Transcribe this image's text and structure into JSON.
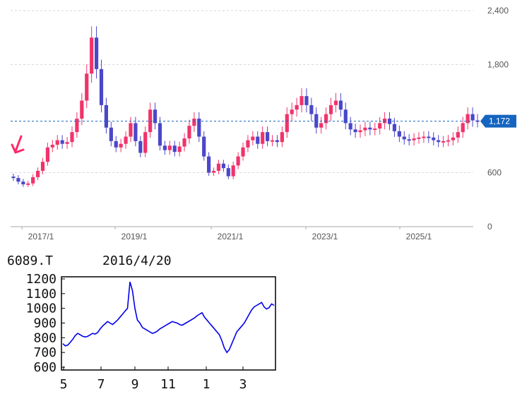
{
  "colors": {
    "up": "#f0336b",
    "down": "#4b47c9",
    "grid": "#d7d7d7",
    "current": "#1565c0",
    "arrow": "#ff2a6a",
    "sub_line": "#0000ee"
  },
  "chart_data": [
    {
      "type": "candlestick",
      "title": "",
      "y_ticks": [
        "2,400",
        "1,800",
        "600",
        "0"
      ],
      "x_ticks": [
        "2017/1",
        "2019/1",
        "2021/1",
        "2023/1",
        "2025/1"
      ],
      "ylim": [
        0,
        2400
      ],
      "grid": true,
      "current_value_label": "1,172",
      "current_value": 1172,
      "annotation": "arrow pointing at first candle",
      "close_series": [
        {
          "date": "2016/5",
          "close": 540
        },
        {
          "date": "2016/6",
          "close": 500
        },
        {
          "date": "2016/7",
          "close": 470
        },
        {
          "date": "2016/8",
          "close": 480
        },
        {
          "date": "2016/9",
          "close": 550
        },
        {
          "date": "2016/10",
          "close": 620
        },
        {
          "date": "2016/11",
          "close": 720
        },
        {
          "date": "2016/12",
          "close": 880
        },
        {
          "date": "2017/1",
          "close": 910
        },
        {
          "date": "2017/2",
          "close": 960
        },
        {
          "date": "2017/3",
          "close": 920
        },
        {
          "date": "2017/4",
          "close": 940
        },
        {
          "date": "2017/5",
          "close": 1050
        },
        {
          "date": "2017/6",
          "close": 1200
        },
        {
          "date": "2017/7",
          "close": 1400
        },
        {
          "date": "2017/8",
          "close": 1700
        },
        {
          "date": "2017/9",
          "close": 2100
        },
        {
          "date": "2017/10",
          "close": 1750
        },
        {
          "date": "2017/11",
          "close": 1350
        },
        {
          "date": "2017/12",
          "close": 1100
        },
        {
          "date": "2018/1",
          "close": 950
        },
        {
          "date": "2018/2",
          "close": 880
        },
        {
          "date": "2018/3",
          "close": 920
        },
        {
          "date": "2018/4",
          "close": 1000
        },
        {
          "date": "2018/5",
          "close": 1150
        },
        {
          "date": "2018/6",
          "close": 950
        },
        {
          "date": "2018/7",
          "close": 820
        },
        {
          "date": "2018/8",
          "close": 1050
        },
        {
          "date": "2018/9",
          "close": 1300
        },
        {
          "date": "2018/10",
          "close": 1150
        },
        {
          "date": "2018/11",
          "close": 900
        },
        {
          "date": "2018/12",
          "close": 850
        },
        {
          "date": "2019/1",
          "close": 900
        },
        {
          "date": "2019/2",
          "close": 830
        },
        {
          "date": "2019/3",
          "close": 890
        },
        {
          "date": "2019/4",
          "close": 980
        },
        {
          "date": "2019/5",
          "close": 1120
        },
        {
          "date": "2019/6",
          "close": 1200
        },
        {
          "date": "2019/7",
          "close": 1000
        },
        {
          "date": "2019/8",
          "close": 780
        },
        {
          "date": "2019/9",
          "close": 600
        },
        {
          "date": "2019/10",
          "close": 620
        },
        {
          "date": "2019/11",
          "close": 700
        },
        {
          "date": "2019/12",
          "close": 650
        },
        {
          "date": "2020/1",
          "close": 560
        },
        {
          "date": "2020/2",
          "close": 680
        },
        {
          "date": "2020/3",
          "close": 780
        },
        {
          "date": "2020/4",
          "close": 880
        },
        {
          "date": "2020/5",
          "close": 960
        },
        {
          "date": "2020/6",
          "close": 1000
        },
        {
          "date": "2020/7",
          "close": 920
        },
        {
          "date": "2020/8",
          "close": 1050
        },
        {
          "date": "2020/9",
          "close": 950
        },
        {
          "date": "2020/10",
          "close": 960
        },
        {
          "date": "2020/11",
          "close": 940
        },
        {
          "date": "2020/12",
          "close": 1050
        },
        {
          "date": "2021/1",
          "close": 1250
        },
        {
          "date": "2021/2",
          "close": 1300
        },
        {
          "date": "2021/3",
          "close": 1350
        },
        {
          "date": "2021/4",
          "close": 1450
        },
        {
          "date": "2021/5",
          "close": 1350
        },
        {
          "date": "2021/6",
          "close": 1250
        },
        {
          "date": "2021/7",
          "close": 1100
        },
        {
          "date": "2021/8",
          "close": 1150
        },
        {
          "date": "2021/9",
          "close": 1250
        },
        {
          "date": "2021/10",
          "close": 1350
        },
        {
          "date": "2021/11",
          "close": 1400
        },
        {
          "date": "2021/12",
          "close": 1300
        },
        {
          "date": "2022/1",
          "close": 1150
        },
        {
          "date": "2022/2",
          "close": 1080
        },
        {
          "date": "2022/3",
          "close": 1050
        },
        {
          "date": "2022/4",
          "close": 1070
        },
        {
          "date": "2022/5",
          "close": 1100
        },
        {
          "date": "2022/6",
          "close": 1080
        },
        {
          "date": "2022/7",
          "close": 1090
        },
        {
          "date": "2022/8",
          "close": 1150
        },
        {
          "date": "2022/9",
          "close": 1200
        },
        {
          "date": "2022/10",
          "close": 1140
        },
        {
          "date": "2022/11",
          "close": 1060
        },
        {
          "date": "2022/12",
          "close": 1000
        },
        {
          "date": "2023/1",
          "close": 970
        },
        {
          "date": "2023/2",
          "close": 960
        },
        {
          "date": "2023/3",
          "close": 980
        },
        {
          "date": "2023/4",
          "close": 990
        },
        {
          "date": "2023/5",
          "close": 1000
        },
        {
          "date": "2023/6",
          "close": 990
        },
        {
          "date": "2023/7",
          "close": 960
        },
        {
          "date": "2023/8",
          "close": 940
        },
        {
          "date": "2023/9",
          "close": 950
        },
        {
          "date": "2023/10",
          "close": 960
        },
        {
          "date": "2023/11",
          "close": 990
        },
        {
          "date": "2023/12",
          "close": 1050
        },
        {
          "date": "2024/1",
          "close": 1150
        },
        {
          "date": "2024/2",
          "close": 1250
        },
        {
          "date": "2024/3",
          "close": 1180
        },
        {
          "date": "2024/4",
          "close": 1172
        }
      ]
    },
    {
      "type": "line",
      "ticker": "6089.T",
      "date": "2016/4/20",
      "y_ticks": [
        "1200",
        "1100",
        "1000",
        "900",
        "800",
        "700",
        "600"
      ],
      "x_ticks": [
        "5",
        "7",
        "9",
        "11",
        "1",
        "3"
      ],
      "ylim": [
        600,
        1200
      ],
      "values": [
        760,
        745,
        750,
        770,
        790,
        815,
        830,
        820,
        810,
        805,
        810,
        820,
        830,
        825,
        835,
        860,
        880,
        895,
        910,
        900,
        890,
        905,
        920,
        940,
        960,
        980,
        1000,
        1180,
        1120,
        1000,
        920,
        900,
        870,
        860,
        850,
        840,
        830,
        835,
        845,
        860,
        870,
        880,
        890,
        900,
        910,
        905,
        900,
        890,
        885,
        895,
        905,
        915,
        925,
        935,
        950,
        960,
        970,
        940,
        920,
        900,
        880,
        860,
        840,
        820,
        780,
        730,
        700,
        720,
        760,
        800,
        840,
        860,
        880,
        900,
        930,
        960,
        990,
        1010,
        1020,
        1030,
        1040,
        1010,
        995,
        1005,
        1030,
        1020
      ]
    }
  ]
}
